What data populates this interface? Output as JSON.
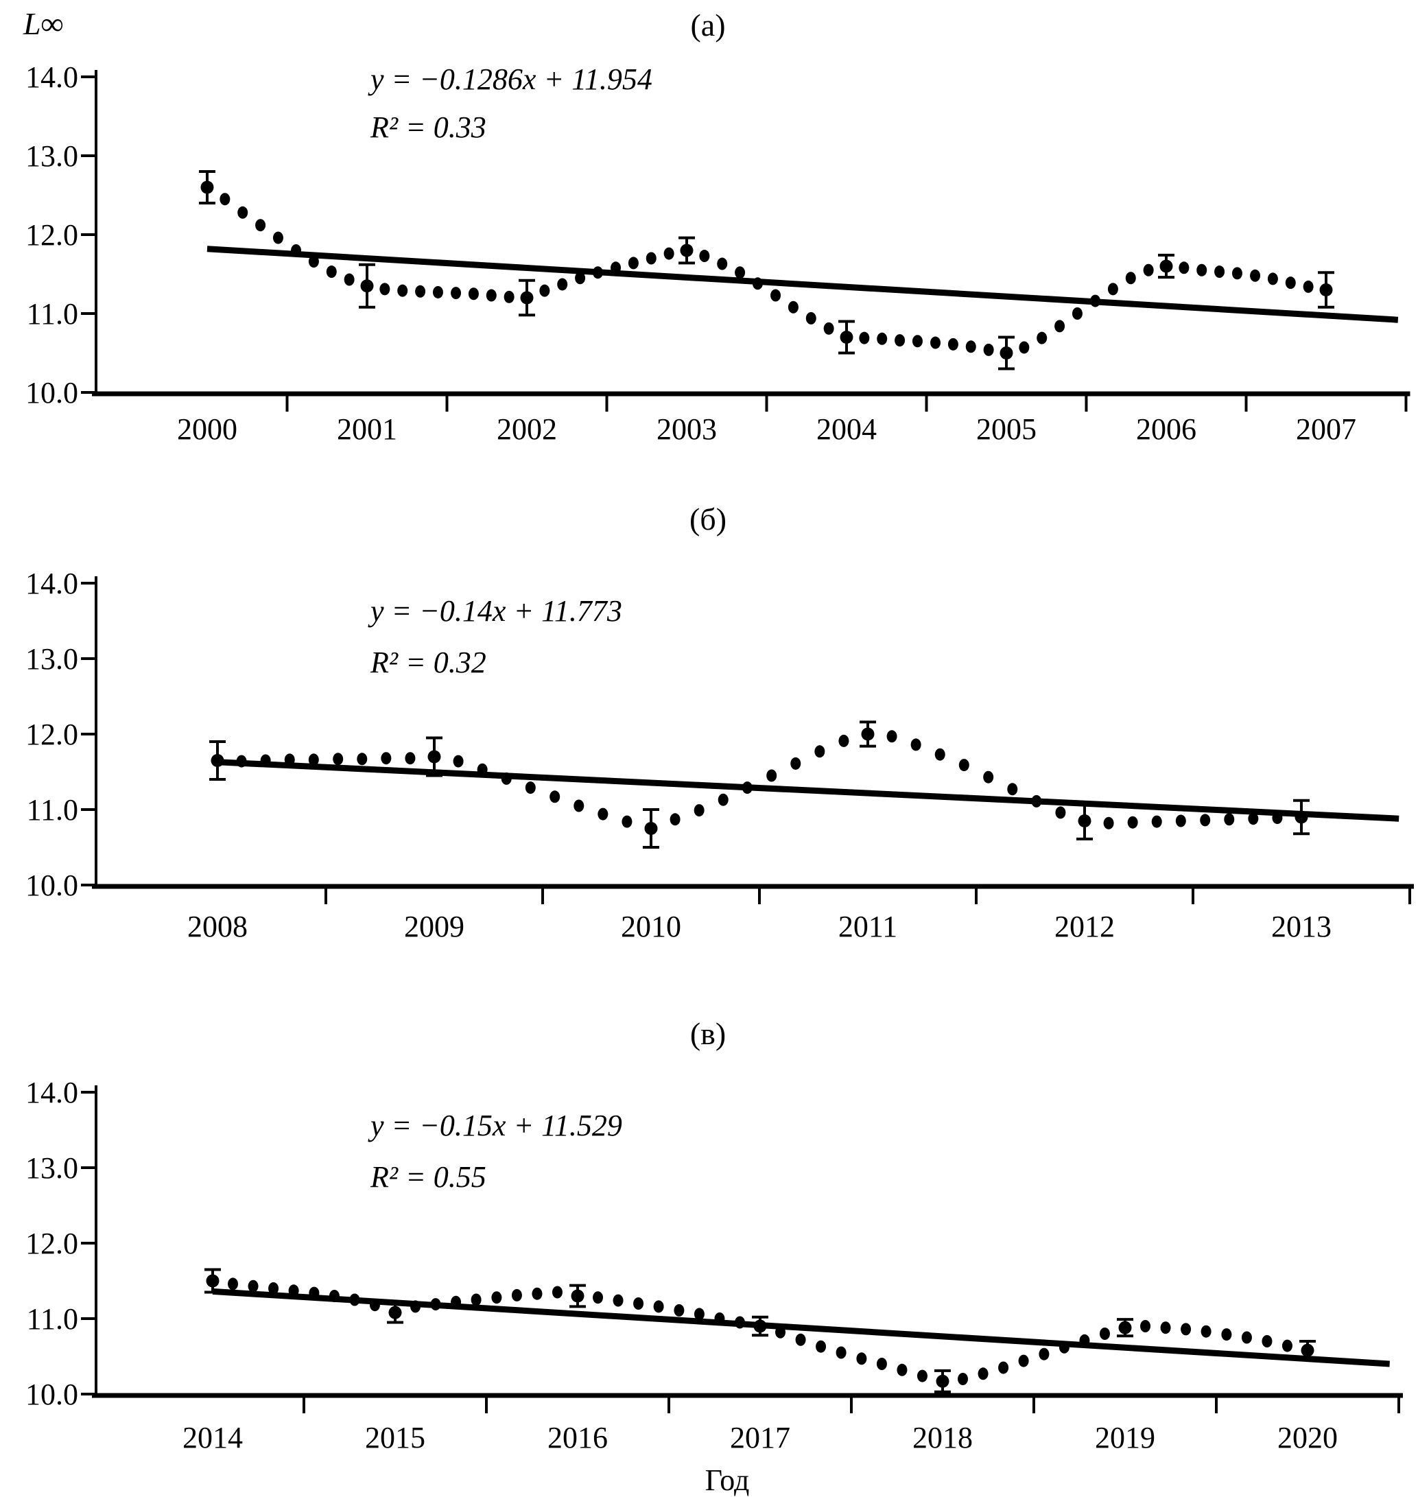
{
  "figure": {
    "y_axis_title": "L∞",
    "x_axis_title": "Год",
    "ink_color": "#000000",
    "background_color": "#ffffff"
  },
  "chart_data": [
    {
      "type": "scatter",
      "panel_label": "(а)",
      "equation": "y = −0.1286x + 11.954",
      "r_squared": "R² = 0.33",
      "ylabel": "L∞",
      "xlabel": "Год",
      "ylim": [
        10.0,
        14.0
      ],
      "grid": "off",
      "x_start": 2000,
      "x_categories": [
        "2000",
        "2001",
        "2002",
        "2003",
        "2004",
        "2005",
        "2006",
        "2007"
      ],
      "y_ticks": [
        {
          "value": 14.0,
          "label": "14.0"
        },
        {
          "value": 13.0,
          "label": "13.0"
        },
        {
          "value": 12.0,
          "label": "12.0"
        },
        {
          "value": 11.0,
          "label": "11.0"
        },
        {
          "value": 10.0,
          "label": "10.0"
        }
      ],
      "trend": {
        "x1": 2000,
        "y1": 11.82,
        "x2": 2007.45,
        "y2": 10.92
      },
      "major_points": [
        {
          "x": 2000,
          "y": 12.6,
          "err": 0.2
        },
        {
          "x": 2001,
          "y": 11.35,
          "err": 0.27
        },
        {
          "x": 2002,
          "y": 11.2,
          "err": 0.22
        },
        {
          "x": 2003,
          "y": 11.8,
          "err": 0.16
        },
        {
          "x": 2004,
          "y": 10.7,
          "err": 0.2
        },
        {
          "x": 2005,
          "y": 10.5,
          "err": 0.2
        },
        {
          "x": 2006,
          "y": 11.6,
          "err": 0.14
        },
        {
          "x": 2007,
          "y": 11.3,
          "err": 0.22
        }
      ],
      "dots": [
        [
          2000.111,
          12.45
        ],
        [
          2000.222,
          12.28
        ],
        [
          2000.333,
          12.12
        ],
        [
          2000.444,
          11.96
        ],
        [
          2000.556,
          11.8
        ],
        [
          2000.667,
          11.66
        ],
        [
          2000.778,
          11.53
        ],
        [
          2000.889,
          11.43
        ],
        [
          2001.111,
          11.31
        ],
        [
          2001.222,
          11.29
        ],
        [
          2001.333,
          11.28
        ],
        [
          2001.444,
          11.27
        ],
        [
          2001.556,
          11.26
        ],
        [
          2001.667,
          11.25
        ],
        [
          2001.778,
          11.23
        ],
        [
          2001.889,
          11.21
        ],
        [
          2002.111,
          11.29
        ],
        [
          2002.222,
          11.37
        ],
        [
          2002.333,
          11.45
        ],
        [
          2002.444,
          11.52
        ],
        [
          2002.556,
          11.58
        ],
        [
          2002.667,
          11.64
        ],
        [
          2002.778,
          11.7
        ],
        [
          2002.889,
          11.76
        ],
        [
          2003.111,
          11.73
        ],
        [
          2003.222,
          11.63
        ],
        [
          2003.333,
          11.52
        ],
        [
          2003.444,
          11.38
        ],
        [
          2003.556,
          11.23
        ],
        [
          2003.667,
          11.08
        ],
        [
          2003.778,
          10.94
        ],
        [
          2003.889,
          10.81
        ],
        [
          2004.111,
          10.69
        ],
        [
          2004.222,
          10.68
        ],
        [
          2004.333,
          10.66
        ],
        [
          2004.444,
          10.65
        ],
        [
          2004.556,
          10.63
        ],
        [
          2004.667,
          10.61
        ],
        [
          2004.778,
          10.58
        ],
        [
          2004.889,
          10.54
        ],
        [
          2005.111,
          10.57
        ],
        [
          2005.222,
          10.69
        ],
        [
          2005.333,
          10.84
        ],
        [
          2005.444,
          11.0
        ],
        [
          2005.556,
          11.16
        ],
        [
          2005.667,
          11.31
        ],
        [
          2005.778,
          11.45
        ],
        [
          2005.889,
          11.55
        ],
        [
          2006.111,
          11.58
        ],
        [
          2006.222,
          11.55
        ],
        [
          2006.333,
          11.53
        ],
        [
          2006.444,
          11.51
        ],
        [
          2006.556,
          11.48
        ],
        [
          2006.667,
          11.44
        ],
        [
          2006.778,
          11.39
        ],
        [
          2006.889,
          11.34
        ]
      ]
    },
    {
      "type": "scatter",
      "panel_label": "(б)",
      "equation": "y = −0.14x + 11.773",
      "r_squared": "R² = 0.32",
      "ylabel": "L∞",
      "xlabel": "Год",
      "ylim": [
        10.0,
        14.0
      ],
      "grid": "off",
      "x_start": 2008,
      "x_categories": [
        "2008",
        "2009",
        "2010",
        "2011",
        "2012",
        "2013"
      ],
      "y_ticks": [
        {
          "value": 14.0,
          "label": "14.0"
        },
        {
          "value": 13.0,
          "label": "13.0"
        },
        {
          "value": 12.0,
          "label": "12.0"
        },
        {
          "value": 11.0,
          "label": "11.0"
        },
        {
          "value": 10.0,
          "label": "10.0"
        }
      ],
      "trend": {
        "x1": 2008,
        "y1": 11.63,
        "x2": 2013.45,
        "y2": 10.88
      },
      "major_points": [
        {
          "x": 2008,
          "y": 11.65,
          "err": 0.25
        },
        {
          "x": 2009,
          "y": 11.7,
          "err": 0.25
        },
        {
          "x": 2010,
          "y": 10.75,
          "err": 0.25
        },
        {
          "x": 2011,
          "y": 12.0,
          "err": 0.16
        },
        {
          "x": 2012,
          "y": 10.85,
          "err": 0.24
        },
        {
          "x": 2013,
          "y": 10.9,
          "err": 0.22
        }
      ],
      "dots": [
        [
          2008.111,
          11.64
        ],
        [
          2008.222,
          11.65
        ],
        [
          2008.333,
          11.66
        ],
        [
          2008.444,
          11.66
        ],
        [
          2008.556,
          11.67
        ],
        [
          2008.667,
          11.67
        ],
        [
          2008.778,
          11.68
        ],
        [
          2008.889,
          11.68
        ],
        [
          2009.111,
          11.64
        ],
        [
          2009.222,
          11.53
        ],
        [
          2009.333,
          11.41
        ],
        [
          2009.444,
          11.29
        ],
        [
          2009.556,
          11.17
        ],
        [
          2009.667,
          11.05
        ],
        [
          2009.778,
          10.94
        ],
        [
          2009.889,
          10.84
        ],
        [
          2010.111,
          10.87
        ],
        [
          2010.222,
          10.99
        ],
        [
          2010.333,
          11.13
        ],
        [
          2010.444,
          11.29
        ],
        [
          2010.556,
          11.45
        ],
        [
          2010.667,
          11.61
        ],
        [
          2010.778,
          11.77
        ],
        [
          2010.889,
          11.91
        ],
        [
          2011.111,
          11.97
        ],
        [
          2011.222,
          11.86
        ],
        [
          2011.333,
          11.73
        ],
        [
          2011.444,
          11.59
        ],
        [
          2011.556,
          11.43
        ],
        [
          2011.667,
          11.27
        ],
        [
          2011.778,
          11.11
        ],
        [
          2011.889,
          10.96
        ],
        [
          2012.111,
          10.82
        ],
        [
          2012.222,
          10.83
        ],
        [
          2012.333,
          10.84
        ],
        [
          2012.444,
          10.85
        ],
        [
          2012.556,
          10.86
        ],
        [
          2012.667,
          10.87
        ],
        [
          2012.778,
          10.88
        ],
        [
          2012.889,
          10.89
        ]
      ]
    },
    {
      "type": "scatter",
      "panel_label": "(в)",
      "equation": "y = −0.15x + 11.529",
      "r_squared": "R² = 0.55",
      "ylabel": "L∞",
      "xlabel": "Год",
      "ylim": [
        10.0,
        14.0
      ],
      "grid": "off",
      "x_start": 2014,
      "x_categories": [
        "2014",
        "2015",
        "2016",
        "2017",
        "2018",
        "2019",
        "2020"
      ],
      "y_ticks": [
        {
          "value": 14.0,
          "label": "14.0"
        },
        {
          "value": 13.0,
          "label": "13.0"
        },
        {
          "value": 12.0,
          "label": "12.0"
        },
        {
          "value": 11.0,
          "label": "11.0"
        },
        {
          "value": 10.0,
          "label": "10.0"
        }
      ],
      "trend": {
        "x1": 2014,
        "y1": 11.36,
        "x2": 2020.45,
        "y2": 10.4
      },
      "major_points": [
        {
          "x": 2014,
          "y": 11.5,
          "err": 0.15
        },
        {
          "x": 2015,
          "y": 11.08,
          "err": 0.13
        },
        {
          "x": 2016,
          "y": 11.3,
          "err": 0.14
        },
        {
          "x": 2017,
          "y": 10.9,
          "err": 0.12
        },
        {
          "x": 2018,
          "y": 10.17,
          "err": 0.14
        },
        {
          "x": 2019,
          "y": 10.88,
          "err": 0.11
        },
        {
          "x": 2020,
          "y": 10.58,
          "err": 0.12
        }
      ],
      "dots": [
        [
          2014.111,
          11.46
        ],
        [
          2014.222,
          11.43
        ],
        [
          2014.333,
          11.4
        ],
        [
          2014.444,
          11.37
        ],
        [
          2014.556,
          11.34
        ],
        [
          2014.667,
          11.3
        ],
        [
          2014.778,
          11.25
        ],
        [
          2014.889,
          11.18
        ],
        [
          2015.111,
          11.16
        ],
        [
          2015.222,
          11.19
        ],
        [
          2015.333,
          11.22
        ],
        [
          2015.444,
          11.25
        ],
        [
          2015.556,
          11.28
        ],
        [
          2015.667,
          11.31
        ],
        [
          2015.778,
          11.33
        ],
        [
          2015.889,
          11.35
        ],
        [
          2016.111,
          11.28
        ],
        [
          2016.222,
          11.24
        ],
        [
          2016.333,
          11.2
        ],
        [
          2016.444,
          11.16
        ],
        [
          2016.556,
          11.11
        ],
        [
          2016.667,
          11.06
        ],
        [
          2016.778,
          11.0
        ],
        [
          2016.889,
          10.95
        ],
        [
          2017.111,
          10.82
        ],
        [
          2017.222,
          10.72
        ],
        [
          2017.333,
          10.63
        ],
        [
          2017.444,
          10.55
        ],
        [
          2017.556,
          10.47
        ],
        [
          2017.667,
          10.4
        ],
        [
          2017.778,
          10.32
        ],
        [
          2017.889,
          10.24
        ],
        [
          2018.111,
          10.2
        ],
        [
          2018.222,
          10.27
        ],
        [
          2018.333,
          10.35
        ],
        [
          2018.444,
          10.44
        ],
        [
          2018.556,
          10.53
        ],
        [
          2018.667,
          10.62
        ],
        [
          2018.778,
          10.71
        ],
        [
          2018.889,
          10.8
        ],
        [
          2019.111,
          10.9
        ],
        [
          2019.222,
          10.88
        ],
        [
          2019.333,
          10.86
        ],
        [
          2019.444,
          10.83
        ],
        [
          2019.556,
          10.79
        ],
        [
          2019.667,
          10.75
        ],
        [
          2019.778,
          10.7
        ],
        [
          2019.889,
          10.64
        ]
      ]
    }
  ]
}
